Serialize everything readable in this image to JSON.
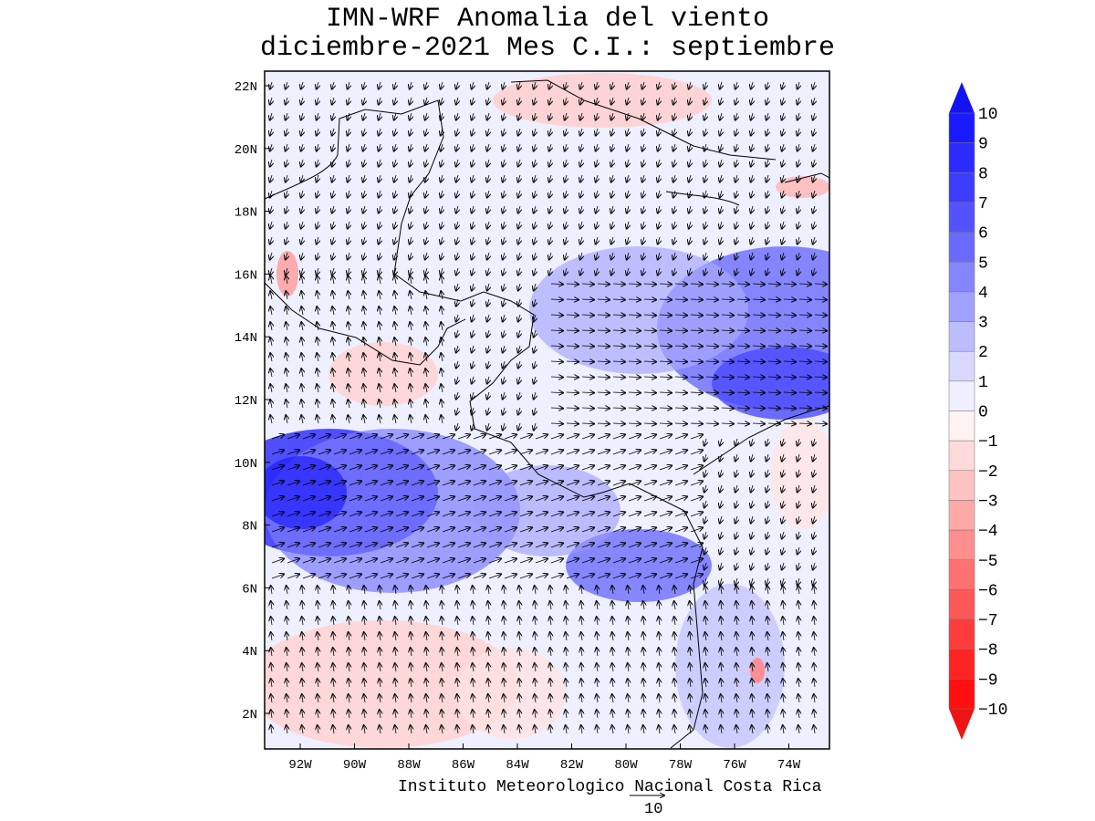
{
  "title": {
    "line1": "IMN-WRF Anomalia del viento",
    "line2": "diciembre-2021 Mes C.I.: septiembre"
  },
  "lat_ticks": [
    "22N",
    "20N",
    "18N",
    "16N",
    "14N",
    "12N",
    "10N",
    "8N",
    "6N",
    "4N",
    "2N"
  ],
  "lon_ticks": [
    "92W",
    "90W",
    "88W",
    "86W",
    "84W",
    "82W",
    "80W",
    "78W",
    "76W",
    "74W"
  ],
  "colorbar": {
    "labels": [
      "10",
      "9",
      "8",
      "7",
      "6",
      "5",
      "4",
      "3",
      "2",
      "1",
      "0",
      "-1",
      "-2",
      "-3",
      "-4",
      "-5",
      "-6",
      "-7",
      "-8",
      "-9",
      "-10"
    ],
    "colors": [
      "#1a1aff",
      "#2b2bff",
      "#3d3dff",
      "#5252ff",
      "#6a6aff",
      "#8585ff",
      "#a0a0ff",
      "#bcbcff",
      "#d8d8ff",
      "#efefff",
      "#fff2f2",
      "#ffdada",
      "#ffc2c2",
      "#ffa8a8",
      "#ff8e8e",
      "#ff7272",
      "#ff5858",
      "#ff3c3c",
      "#ff2424",
      "#ff0f0f"
    ],
    "top_arrow_color": "#1414ee",
    "bottom_arrow_color": "#ee1414"
  },
  "credit": "Instituto Meteorologico Nacional Costa Rica",
  "reference_vector": "10"
}
